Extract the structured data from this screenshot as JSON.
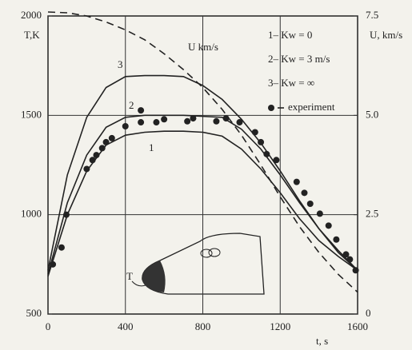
{
  "chart_data": {
    "type": "line",
    "xlabel": "t, s",
    "ylabel": "T,K",
    "y2label": "U, km/s",
    "xlim": [
      0,
      1600
    ],
    "xticks": [
      0,
      400,
      800,
      1200,
      1600
    ],
    "ylim": [
      500,
      2000
    ],
    "yticks": [
      500,
      1000,
      1500,
      2000
    ],
    "y2lim": [
      0,
      7.5
    ],
    "y2ticks": [
      0,
      2.5,
      {
        "value": 5,
        "label": "5.0"
      },
      7.5
    ],
    "grid": true,
    "legend": "upper right",
    "x": [
      0,
      100,
      200,
      300,
      400,
      500,
      600,
      700,
      800,
      900,
      1000,
      1100,
      1200,
      1300,
      1400,
      1500,
      1600
    ],
    "series": [
      {
        "name": "1– Kw = 0",
        "color": "#222222",
        "values": [
          690,
          1000,
          1220,
          1350,
          1400,
          1415,
          1420,
          1420,
          1415,
          1395,
          1330,
          1230,
          1110,
          980,
          870,
          790,
          720
        ]
      },
      {
        "name": "2– Kw = 3 m/s",
        "color": "#222222",
        "values": [
          700,
          1060,
          1300,
          1440,
          1490,
          1500,
          1500,
          1500,
          1495,
          1490,
          1430,
          1330,
          1200,
          1060,
          930,
          820,
          720
        ]
      },
      {
        "name": "3– Kw = ∞",
        "color": "#222222",
        "values": [
          720,
          1200,
          1490,
          1640,
          1695,
          1700,
          1700,
          1695,
          1650,
          1580,
          1480,
          1360,
          1220,
          1070,
          930,
          810,
          720
        ]
      },
      {
        "name": "experiment",
        "color": "#222222",
        "marker": "dot",
        "x": [
          25,
          70,
          95,
          200,
          230,
          250,
          280,
          300,
          330,
          400,
          480,
          480,
          560,
          600,
          720,
          750,
          870,
          920,
          990,
          1070,
          1100,
          1130,
          1180,
          1285,
          1325,
          1355,
          1405,
          1450,
          1490,
          1540,
          1560,
          1590
        ],
        "values": [
          750,
          835,
          1000,
          1230,
          1275,
          1300,
          1335,
          1365,
          1385,
          1445,
          1525,
          1465,
          1465,
          1480,
          1470,
          1485,
          1470,
          1485,
          1465,
          1415,
          1365,
          1305,
          1275,
          1165,
          1110,
          1055,
          1005,
          945,
          875,
          800,
          775,
          720
        ]
      },
      {
        "name": "U km/s",
        "color": "#222222",
        "axis": "y2",
        "dash": "9 6",
        "legend": false,
        "values": [
          7.6,
          7.58,
          7.5,
          7.35,
          7.15,
          6.9,
          6.55,
          6.15,
          5.7,
          5.15,
          4.5,
          3.75,
          2.95,
          2.2,
          1.55,
          1.0,
          0.55
        ]
      }
    ],
    "annotations": [
      "3",
      "2",
      "1",
      "T"
    ]
  }
}
